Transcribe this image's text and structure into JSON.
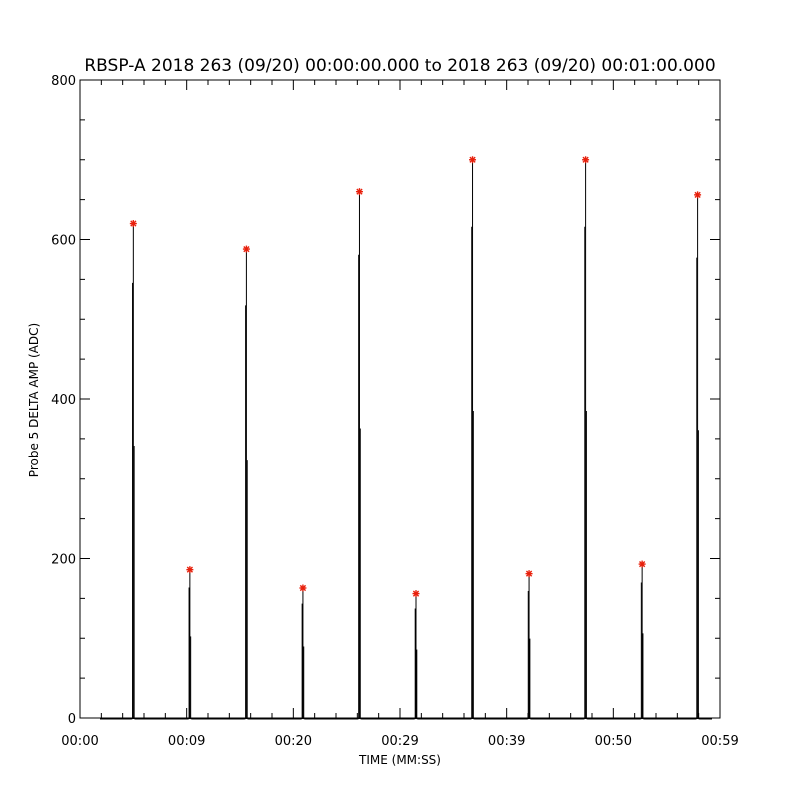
{
  "chart_data": {
    "type": "line",
    "title": "RBSP-A 2018 263 (09/20) 00:00:00.000 to 2018 263 (09/20) 00:01:00.000",
    "xlabel": "TIME (MM:SS)",
    "ylabel": "Probe 5 DELTA AMP (ADC)",
    "xlim": [
      0,
      60
    ],
    "ylim": [
      0,
      800
    ],
    "x_tick_values": [
      0,
      10.0,
      20.0,
      30.0,
      40.0,
      50.0,
      60.0
    ],
    "x_tick_labels": [
      "00:00",
      "00:09",
      "00:20",
      "00:29",
      "00:39",
      "00:50",
      "00:59"
    ],
    "y_tick_values": [
      0,
      200,
      400,
      600,
      800
    ],
    "y_tick_labels": [
      "0",
      "200",
      "400",
      "600",
      "800"
    ],
    "grid": false,
    "series": [
      {
        "type": "spikes",
        "color": "#000000",
        "times": [
          5.0,
          10.3,
          15.6,
          20.9,
          26.2,
          31.5,
          36.8,
          42.1,
          47.4,
          52.7,
          57.9
        ],
        "values": [
          620,
          186,
          588,
          163,
          660,
          156,
          700,
          181,
          700,
          193,
          656
        ]
      },
      {
        "type": "markers",
        "marker": "asterisk",
        "color": "#e8200c",
        "x": [
          5.0,
          10.3,
          15.6,
          20.9,
          26.2,
          31.5,
          36.8,
          42.1,
          47.4,
          52.7,
          57.9
        ],
        "values": [
          620,
          186,
          588,
          163,
          660,
          156,
          700,
          181,
          700,
          193,
          656
        ]
      }
    ]
  }
}
